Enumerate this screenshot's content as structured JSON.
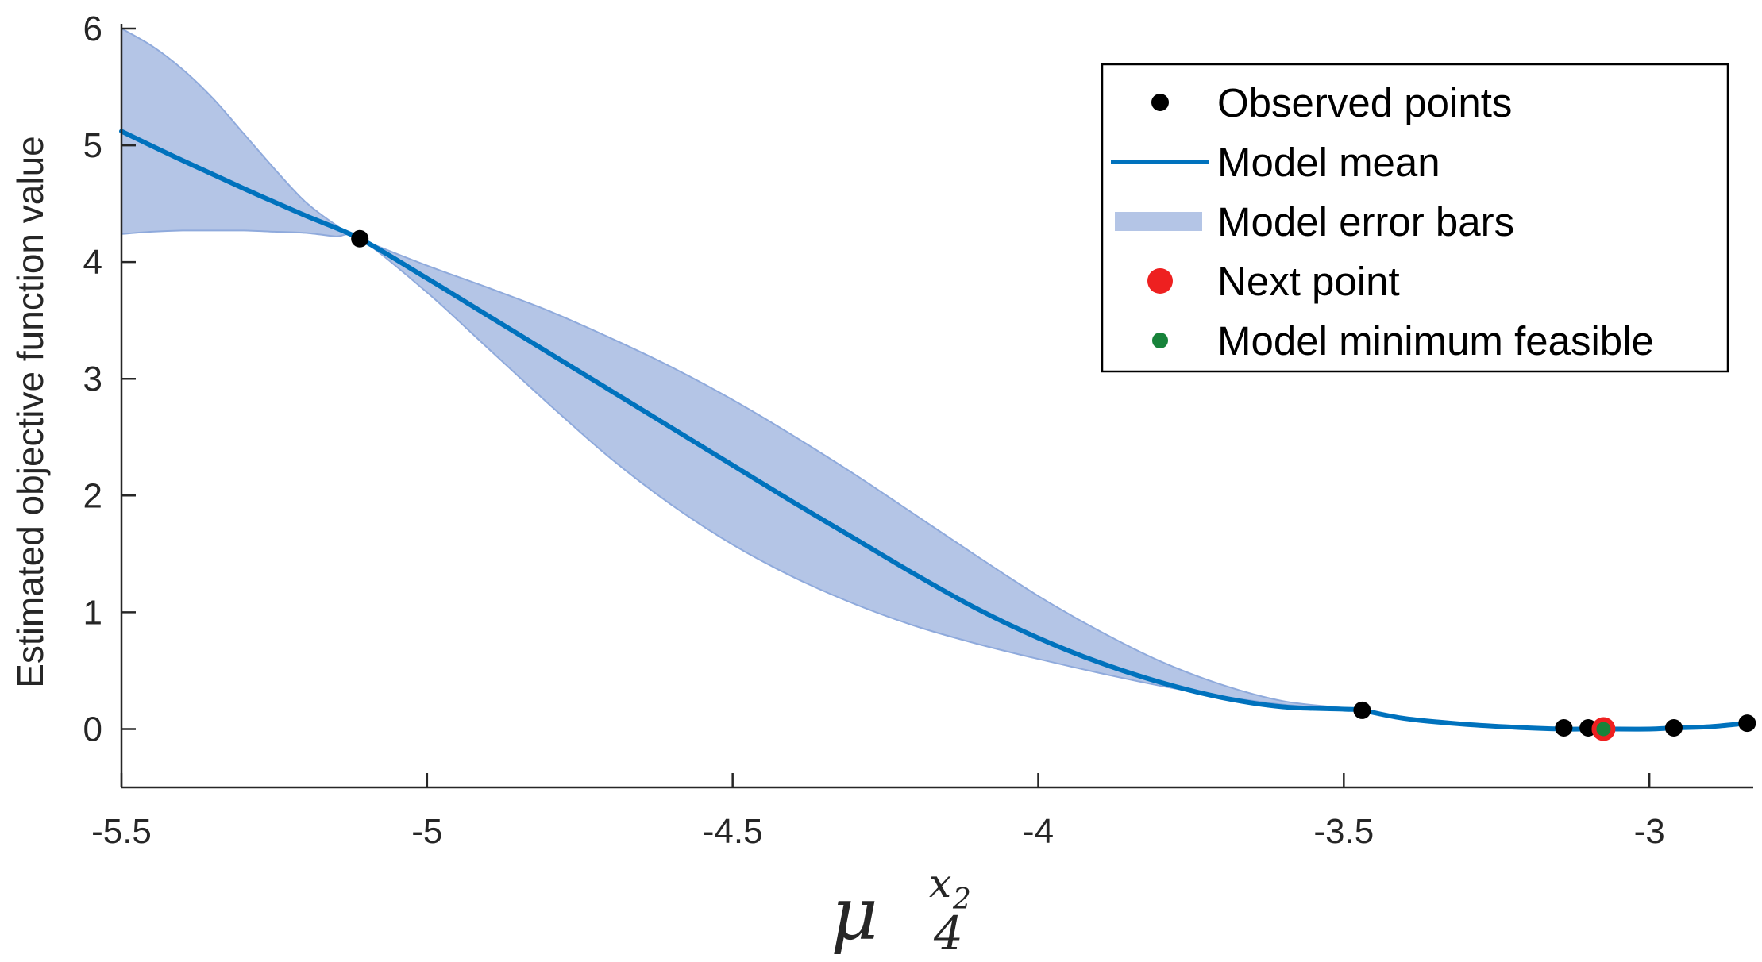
{
  "chart_data": {
    "type": "line",
    "title": "",
    "xlabel": {
      "base": "μ",
      "subscript": "4",
      "superscript_var": "x",
      "superscript_sub": "2"
    },
    "ylabel": "Estimated objective function value",
    "xlim": [
      -5.5,
      -2.83
    ],
    "ylim": [
      -0.5,
      6
    ],
    "x_ticks": [
      -5.5,
      -5,
      -4.5,
      -4,
      -3.5,
      -3
    ],
    "x_tick_labels": [
      "-5.5",
      "-5",
      "-4.5",
      "-4",
      "-3.5",
      "-3"
    ],
    "y_ticks": [
      0,
      1,
      2,
      3,
      4,
      5,
      6
    ],
    "y_tick_labels": [
      "0",
      "1",
      "2",
      "3",
      "4",
      "5",
      "6"
    ],
    "grid": false,
    "legend_position": "top-right",
    "legend": [
      {
        "label": "Observed points",
        "kind": "observed"
      },
      {
        "label": "Model mean",
        "kind": "mean"
      },
      {
        "label": "Model error bars",
        "kind": "band"
      },
      {
        "label": "Next point",
        "kind": "next"
      },
      {
        "label": "Model minimum feasible",
        "kind": "minimum"
      }
    ],
    "colors": {
      "observed": "#000000",
      "mean": "#0072BD",
      "band_fill": "#b4c5e6",
      "band_edge": "#8faadc",
      "next": "#ee2020",
      "minimum": "#17833a",
      "axes": "#262626"
    },
    "series": [
      {
        "name": "Model mean",
        "x": [
          -5.5,
          -5.4,
          -5.3,
          -5.2,
          -5.11,
          -5.0,
          -4.9,
          -4.8,
          -4.7,
          -4.6,
          -4.5,
          -4.4,
          -4.3,
          -4.2,
          -4.1,
          -4.0,
          -3.9,
          -3.8,
          -3.7,
          -3.6,
          -3.5,
          -3.47,
          -3.4,
          -3.3,
          -3.2,
          -3.14,
          -3.1,
          -3.07,
          -3.0,
          -2.96,
          -2.9,
          -2.84
        ],
        "y": [
          5.12,
          4.87,
          4.63,
          4.4,
          4.2,
          3.86,
          3.54,
          3.22,
          2.9,
          2.58,
          2.26,
          1.94,
          1.63,
          1.32,
          1.03,
          0.78,
          0.57,
          0.4,
          0.27,
          0.19,
          0.17,
          0.16,
          0.09,
          0.04,
          0.01,
          0.0,
          0.0,
          0.0,
          0.0,
          0.01,
          0.02,
          0.05
        ]
      },
      {
        "name": "Model error bars",
        "x": [
          -5.5,
          -5.45,
          -5.4,
          -5.35,
          -5.3,
          -5.25,
          -5.2,
          -5.15,
          -5.11,
          -5.0,
          -4.9,
          -4.8,
          -4.7,
          -4.6,
          -4.5,
          -4.4,
          -4.3,
          -4.2,
          -4.1,
          -4.0,
          -3.9,
          -3.8,
          -3.7,
          -3.6,
          -3.5,
          -3.47
        ],
        "upper": [
          6.0,
          5.85,
          5.65,
          5.4,
          5.1,
          4.8,
          4.52,
          4.32,
          4.2,
          3.97,
          3.78,
          3.58,
          3.35,
          3.1,
          2.82,
          2.51,
          2.18,
          1.83,
          1.48,
          1.14,
          0.84,
          0.58,
          0.38,
          0.24,
          0.18,
          0.16
        ],
        "lower": [
          4.24,
          4.26,
          4.27,
          4.27,
          4.27,
          4.26,
          4.25,
          4.22,
          4.2,
          3.74,
          3.26,
          2.78,
          2.32,
          1.92,
          1.58,
          1.3,
          1.07,
          0.88,
          0.73,
          0.6,
          0.48,
          0.37,
          0.28,
          0.21,
          0.17,
          0.16
        ]
      },
      {
        "name": "Observed points",
        "x": [
          -5.11,
          -3.47,
          -3.14,
          -3.1,
          -2.96,
          -2.84
        ],
        "y": [
          4.2,
          0.16,
          0.01,
          0.01,
          0.01,
          0.05
        ]
      },
      {
        "name": "Next point",
        "x": [
          -3.075
        ],
        "y": [
          0.0
        ]
      },
      {
        "name": "Model minimum feasible",
        "x": [
          -3.075
        ],
        "y": [
          0.0
        ]
      }
    ]
  }
}
